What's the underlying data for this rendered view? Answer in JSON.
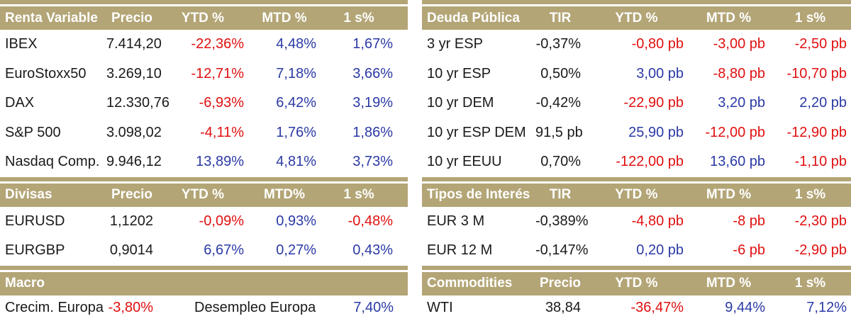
{
  "colors": {
    "header_bg": "#b3a576",
    "header_text": "#ffffff",
    "negative": "#e01010",
    "positive": "#2b3aa5",
    "neutral": "#1a1a1a"
  },
  "left": {
    "sections": [
      {
        "title": "Renta Variable",
        "cols": [
          "Precio",
          "YTD %",
          "MTD %",
          "1 s%"
        ],
        "rows": [
          {
            "label": "IBEX",
            "cells": [
              {
                "t": "7.414,20",
                "c": "k"
              },
              {
                "t": "-22,36%",
                "c": "r"
              },
              {
                "t": "4,48%",
                "c": "b"
              },
              {
                "t": "1,67%",
                "c": "b"
              }
            ]
          },
          {
            "label": "EuroStoxx50",
            "cells": [
              {
                "t": "3.269,10",
                "c": "k"
              },
              {
                "t": "-12,71%",
                "c": "r"
              },
              {
                "t": "7,18%",
                "c": "b"
              },
              {
                "t": "3,66%",
                "c": "b"
              }
            ]
          },
          {
            "label": "DAX",
            "cells": [
              {
                "t": "12.330,76",
                "c": "k"
              },
              {
                "t": "-6,93%",
                "c": "r"
              },
              {
                "t": "6,42%",
                "c": "b"
              },
              {
                "t": "3,19%",
                "c": "b"
              }
            ]
          },
          {
            "label": "S&P 500",
            "cells": [
              {
                "t": "3.098,02",
                "c": "k"
              },
              {
                "t": "-4,11%",
                "c": "r"
              },
              {
                "t": "1,76%",
                "c": "b"
              },
              {
                "t": "1,86%",
                "c": "b"
              }
            ]
          },
          {
            "label": "Nasdaq Comp.",
            "cells": [
              {
                "t": "9.946,12",
                "c": "k"
              },
              {
                "t": "13,89%",
                "c": "b"
              },
              {
                "t": "4,81%",
                "c": "b"
              },
              {
                "t": "3,73%",
                "c": "b"
              }
            ]
          }
        ]
      },
      {
        "title": "Divisas",
        "cols": [
          "Precio",
          "YTD %",
          "MTD%",
          "1 s%"
        ],
        "rows": [
          {
            "label": "EURUSD",
            "cells": [
              {
                "t": "1,1202",
                "c": "k"
              },
              {
                "t": "-0,09%",
                "c": "r"
              },
              {
                "t": "0,93%",
                "c": "b"
              },
              {
                "t": "-0,48%",
                "c": "r"
              }
            ]
          },
          {
            "label": "EURGBP",
            "cells": [
              {
                "t": "0,9014",
                "c": "k"
              },
              {
                "t": "6,67%",
                "c": "b"
              },
              {
                "t": "0,27%",
                "c": "b"
              },
              {
                "t": "0,43%",
                "c": "b"
              }
            ]
          }
        ]
      }
    ],
    "macro": {
      "title": "Macro",
      "rows": [
        {
          "label": "Crecim. Europa",
          "cells": [
            {
              "t": "-3,80%",
              "c": "r"
            },
            {
              "t": "Desempleo Europa",
              "c": "l"
            },
            {
              "t": "7,40%",
              "c": "b"
            }
          ]
        }
      ]
    }
  },
  "right": {
    "sections": [
      {
        "title": "Deuda Pública",
        "cols": [
          "TIR",
          "YTD %",
          "MTD %",
          "1 s%"
        ],
        "rows": [
          {
            "label": "3 yr ESP",
            "cells": [
              {
                "t": "-0,37%",
                "c": "k"
              },
              {
                "t": "-0,80 pb",
                "c": "r"
              },
              {
                "t": "-3,00 pb",
                "c": "r"
              },
              {
                "t": "-2,50 pb",
                "c": "r"
              }
            ]
          },
          {
            "label": "10 yr ESP",
            "cells": [
              {
                "t": "0,50%",
                "c": "k"
              },
              {
                "t": "3,00 pb",
                "c": "b"
              },
              {
                "t": "-8,80 pb",
                "c": "r"
              },
              {
                "t": "-10,70 pb",
                "c": "r"
              }
            ]
          },
          {
            "label": "10 yr DEM",
            "cells": [
              {
                "t": "-0,42%",
                "c": "k"
              },
              {
                "t": "-22,90 pb",
                "c": "r"
              },
              {
                "t": "3,20 pb",
                "c": "b"
              },
              {
                "t": "2,20 pb",
                "c": "b"
              }
            ]
          },
          {
            "label": "10 yr ESP DEM",
            "cells": [
              {
                "t": "91,5 pb",
                "c": "k"
              },
              {
                "t": "25,90 pb",
                "c": "b"
              },
              {
                "t": "-12,00 pb",
                "c": "r"
              },
              {
                "t": "-12,90 pb",
                "c": "r"
              }
            ]
          },
          {
            "label": "10 yr EEUU",
            "cells": [
              {
                "t": "0,70%",
                "c": "k"
              },
              {
                "t": "-122,00 pb",
                "c": "r"
              },
              {
                "t": "13,60 pb",
                "c": "b"
              },
              {
                "t": "-1,10 pb",
                "c": "r"
              }
            ]
          }
        ]
      },
      {
        "title": "Tipos de Interés",
        "cols": [
          "TIR",
          "YTD %",
          "MTD %",
          "1 s%"
        ],
        "rows": [
          {
            "label": "EUR 3 M",
            "cells": [
              {
                "t": "-0,389%",
                "c": "k"
              },
              {
                "t": "-4,80 pb",
                "c": "r"
              },
              {
                "t": "-8 pb",
                "c": "r"
              },
              {
                "t": "-2,30 pb",
                "c": "r"
              }
            ]
          },
          {
            "label": "EUR 12 M",
            "cells": [
              {
                "t": "-0,147%",
                "c": "k"
              },
              {
                "t": "0,20 pb",
                "c": "b"
              },
              {
                "t": "-6 pb",
                "c": "r"
              },
              {
                "t": "-2,90 pb",
                "c": "r"
              }
            ]
          }
        ]
      },
      {
        "title": "Commodities",
        "cols": [
          "Precio",
          "YTD %",
          "MTD %",
          "1 s%"
        ],
        "rows": [
          {
            "label": "WTI",
            "cells": [
              {
                "t": "38,84",
                "c": "k"
              },
              {
                "t": "-36,47%",
                "c": "r"
              },
              {
                "t": "9,44%",
                "c": "b"
              },
              {
                "t": "7,12%",
                "c": "b"
              }
            ]
          }
        ]
      }
    ]
  }
}
